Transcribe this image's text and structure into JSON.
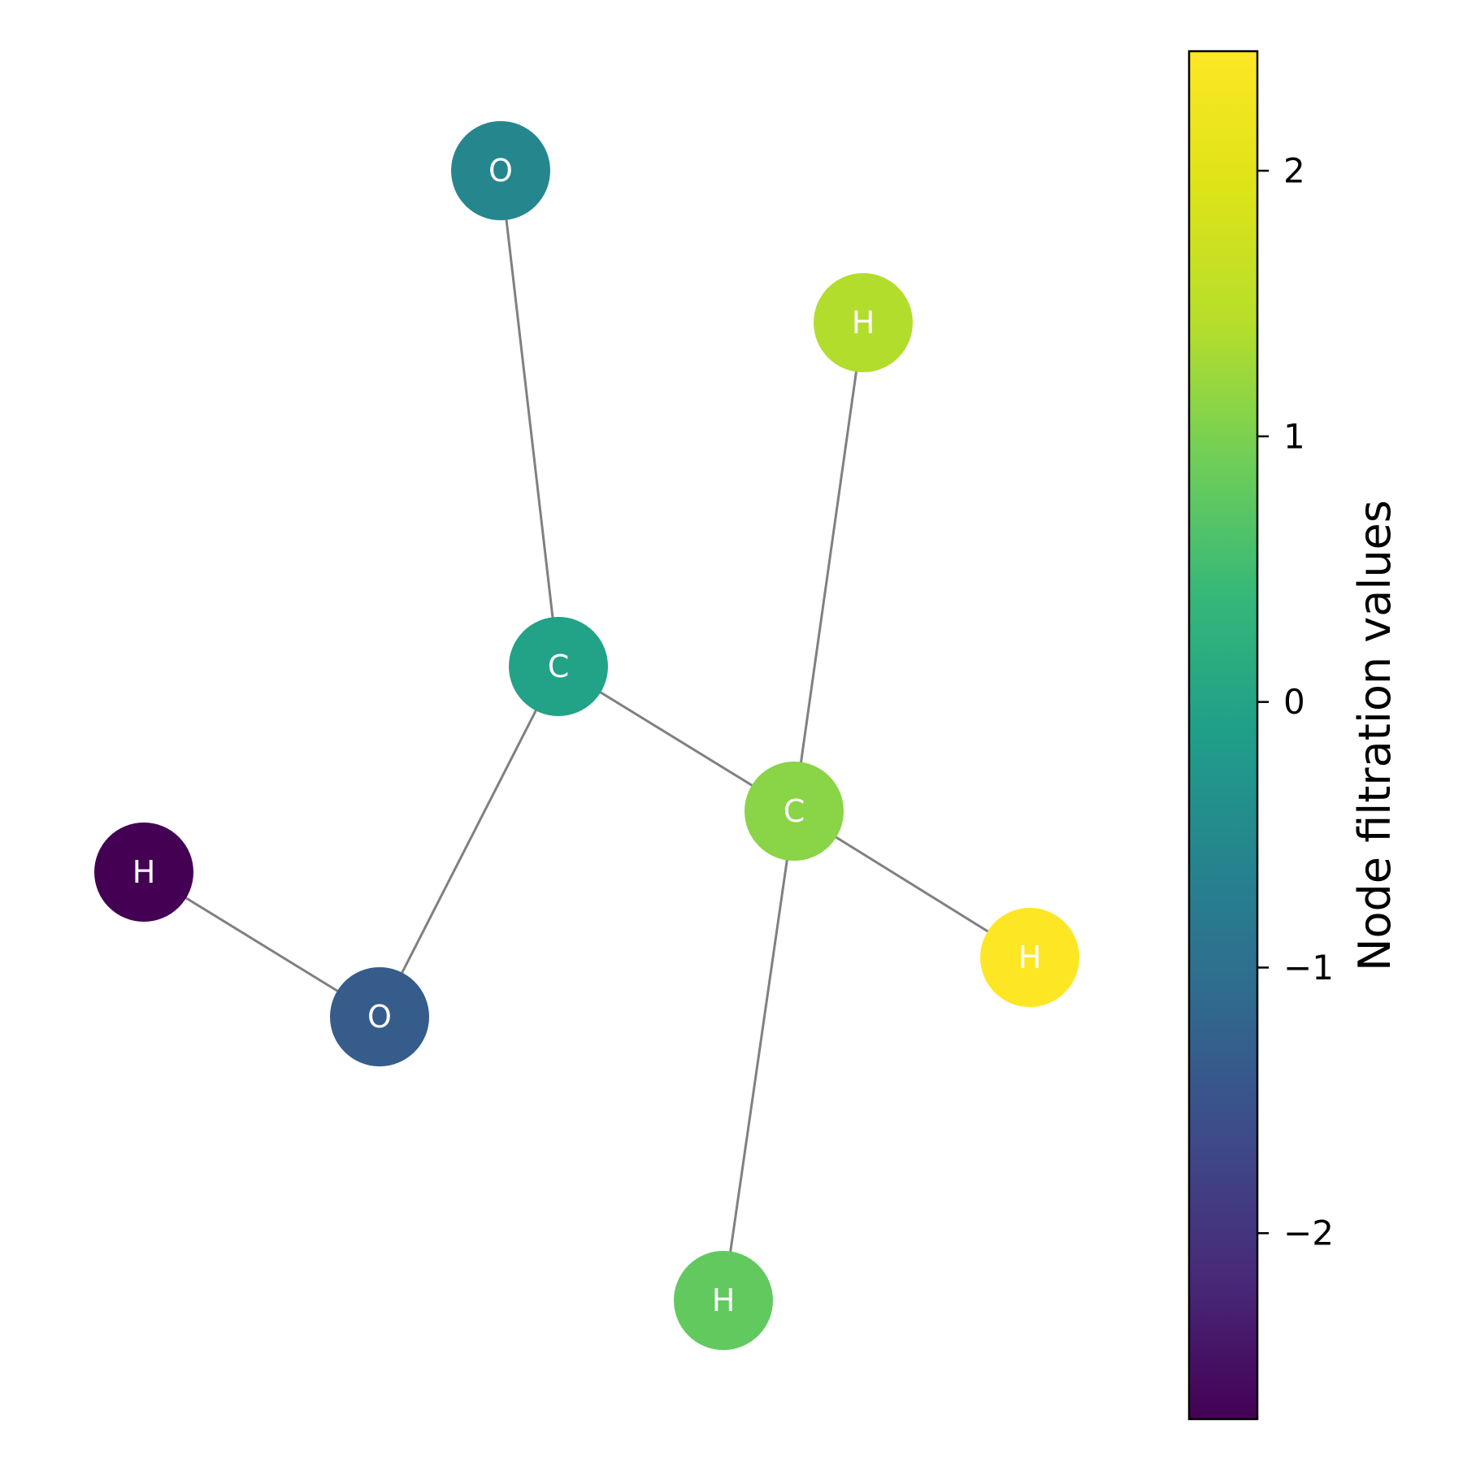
{
  "graph": {
    "nodes": [
      {
        "id": "O1",
        "label": "O",
        "value": -0.55
      },
      {
        "id": "H1",
        "label": "H",
        "value": 1.4
      },
      {
        "id": "C1",
        "label": "C",
        "value": -0.05
      },
      {
        "id": "C2",
        "label": "C",
        "value": 1.1
      },
      {
        "id": "H2",
        "label": "H",
        "value": -2.7
      },
      {
        "id": "H3",
        "label": "H",
        "value": 2.45
      },
      {
        "id": "O2",
        "label": "O",
        "value": -1.35
      },
      {
        "id": "H4",
        "label": "H",
        "value": 0.8
      }
    ],
    "edges": [
      {
        "source": "O1",
        "target": "C1"
      },
      {
        "source": "C1",
        "target": "C2"
      },
      {
        "source": "C1",
        "target": "O2"
      },
      {
        "source": "H1",
        "target": "C2"
      },
      {
        "source": "C2",
        "target": "H3"
      },
      {
        "source": "C2",
        "target": "H4"
      },
      {
        "source": "H2",
        "target": "O2"
      }
    ],
    "edge_color": "#808080"
  },
  "colorbar": {
    "label": "Node filtration values",
    "range": [
      -2.7,
      2.45
    ],
    "colormap": "viridis",
    "ticks": [
      {
        "value": 2,
        "label": "2"
      },
      {
        "value": 1,
        "label": "1"
      },
      {
        "value": 0,
        "label": "0"
      },
      {
        "value": -1,
        "label": "−1"
      },
      {
        "value": -2,
        "label": "−2"
      }
    ]
  }
}
